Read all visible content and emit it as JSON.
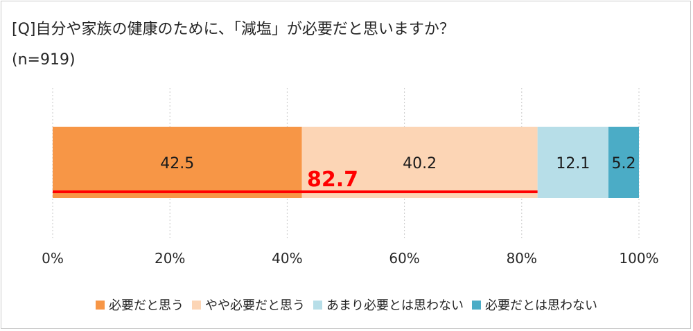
{
  "title": "[Q]自分や家族の健康のために、「減塩」が必要だと思いますか？",
  "subtitle": "(n=919)",
  "chart_data": {
    "type": "bar",
    "orientation": "horizontal-stacked",
    "categories": [
      ""
    ],
    "series": [
      {
        "name": "必要だと思う",
        "values": [
          42.5
        ],
        "color": "#f79646",
        "label": "42.5"
      },
      {
        "name": "やや必要だと思う",
        "values": [
          40.2
        ],
        "color": "#fcd5b5",
        "label": "40.2"
      },
      {
        "name": "あまり必要とは思わない",
        "values": [
          12.1
        ],
        "color": "#b7dee8",
        "label": "12.1"
      },
      {
        "name": "必要だとは思わない",
        "values": [
          5.2
        ],
        "color": "#4bacc6",
        "label": "5.2"
      }
    ],
    "xlim": [
      0,
      100
    ],
    "x_ticks": [
      0,
      20,
      40,
      60,
      80,
      100
    ],
    "x_tick_labels": [
      "0%",
      "20%",
      "40%",
      "60%",
      "80%",
      "100%"
    ],
    "grid": true,
    "legend_position": "bottom",
    "annotation": {
      "text": "82.7",
      "value": 82.7,
      "color": "#ff0000"
    }
  }
}
